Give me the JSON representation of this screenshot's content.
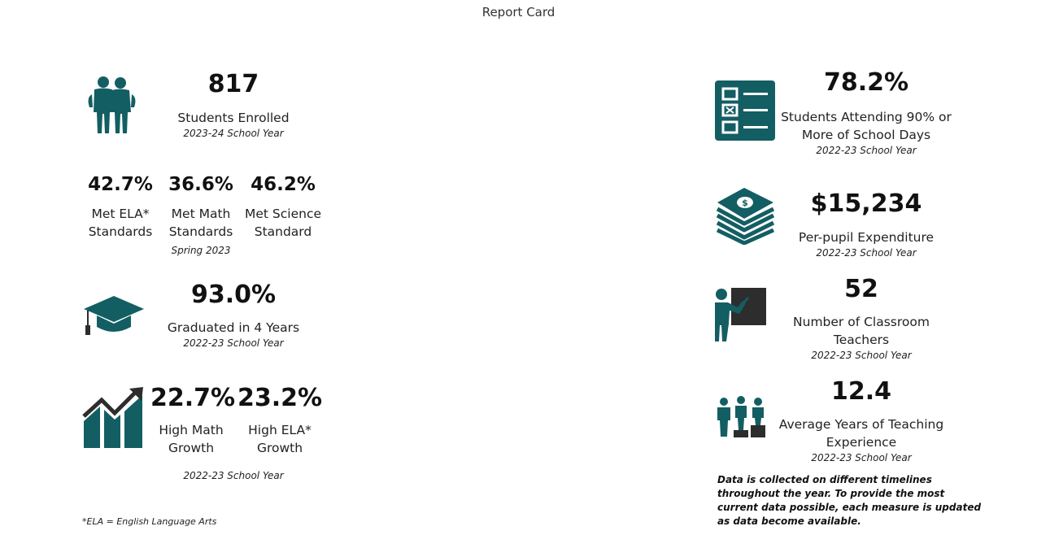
{
  "title": "Report Card",
  "accent_color": "#135e63",
  "dark_color": "#2d2d2d",
  "left": {
    "enrollment": {
      "value": "817",
      "label": "Students Enrolled",
      "period": "2023-24 School Year",
      "icon": "students-icon"
    },
    "standards": [
      {
        "value": "42.7%",
        "label_line1": "Met ELA*",
        "label_line2": "Standards"
      },
      {
        "value": "36.6%",
        "label_line1": "Met Math",
        "label_line2": "Standards"
      },
      {
        "value": "46.2%",
        "label_line1": "Met Science",
        "label_line2": "Standard"
      }
    ],
    "standards_period": "Spring 2023",
    "graduation": {
      "value": "93.0%",
      "label": "Graduated in 4 Years",
      "period": "2022-23 School Year",
      "icon": "graduation-cap-icon"
    },
    "growth": [
      {
        "value": "22.7%",
        "label_line1": "High Math",
        "label_line2": "Growth"
      },
      {
        "value": "23.2%",
        "label_line1": "High ELA*",
        "label_line2": "Growth"
      }
    ],
    "growth_period": "2022-23 School Year",
    "growth_icon": "growth-chart-icon",
    "footnote": "*ELA = English Language Arts"
  },
  "right": {
    "attendance": {
      "value": "78.2%",
      "label_line1": "Students Attending 90% or",
      "label_line2": "More of School Days",
      "period": "2022-23 School Year",
      "icon": "checklist-icon"
    },
    "expenditure": {
      "value": "$15,234",
      "label": "Per-pupil Expenditure",
      "period": "2022-23 School Year",
      "icon": "money-stack-icon"
    },
    "teachers": {
      "value": "52",
      "label_line1": "Number of Classroom",
      "label_line2": "Teachers",
      "period": "2022-23 School Year",
      "icon": "teacher-icon"
    },
    "experience": {
      "value": "12.4",
      "label_line1": "Average Years of Teaching",
      "label_line2": "Experience",
      "period": "2022-23 School Year",
      "icon": "podium-people-icon"
    },
    "note_lines": [
      "Data is collected on different timelines",
      "throughout the year. To provide the most",
      "current data possible, each measure is updated",
      "as data become available."
    ]
  }
}
